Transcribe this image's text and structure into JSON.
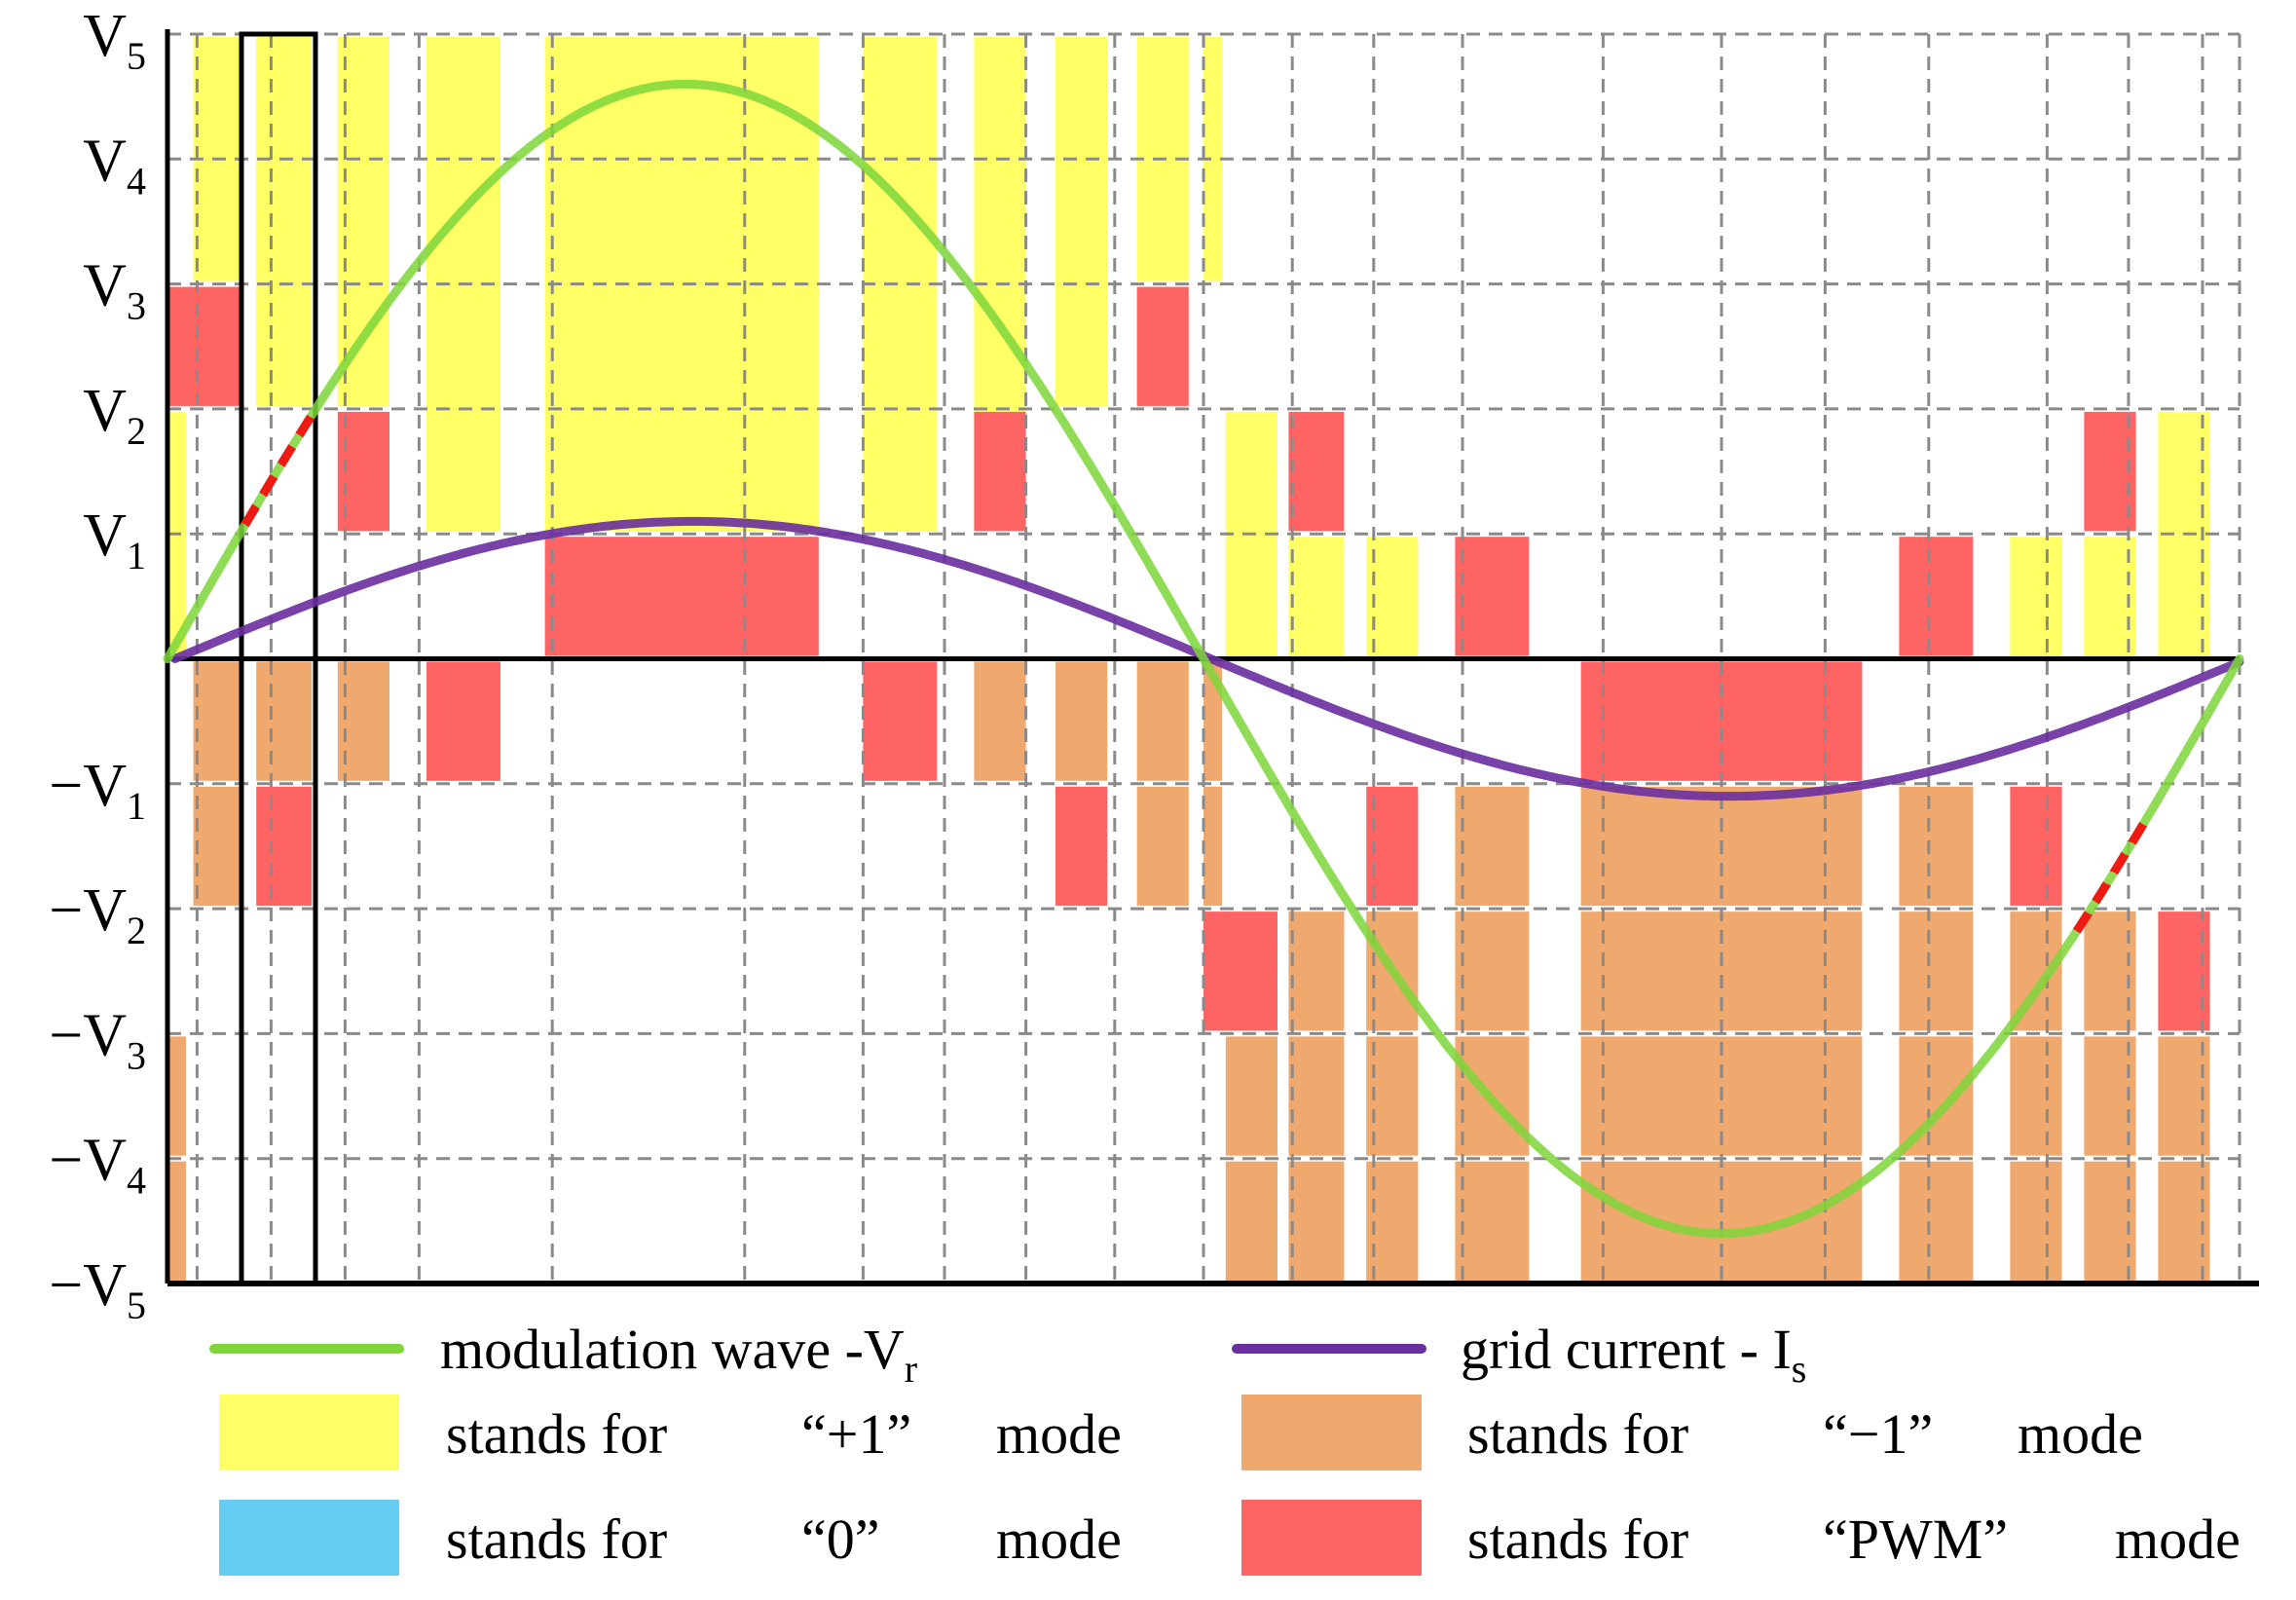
{
  "chart_data": {
    "type": "line",
    "title": "",
    "xlabel": "",
    "ylabel": "",
    "xlim": [
      0,
      28
    ],
    "ylim": [
      -5,
      5
    ],
    "grid": true,
    "yticks": [
      {
        "value": 5,
        "neg": false,
        "main": "V",
        "sub": "5"
      },
      {
        "value": 4,
        "neg": false,
        "main": "V",
        "sub": "4"
      },
      {
        "value": 3,
        "neg": false,
        "main": "V",
        "sub": "3"
      },
      {
        "value": 2,
        "neg": false,
        "main": "V",
        "sub": "2"
      },
      {
        "value": 1,
        "neg": false,
        "main": "V",
        "sub": "1"
      },
      {
        "value": -1,
        "neg": true,
        "main": "V",
        "sub": "1"
      },
      {
        "value": -2,
        "neg": true,
        "main": "V",
        "sub": "2"
      },
      {
        "value": -3,
        "neg": true,
        "main": "V",
        "sub": "3"
      },
      {
        "value": -4,
        "neg": true,
        "main": "V",
        "sub": "4"
      },
      {
        "value": -5,
        "neg": true,
        "main": "V",
        "sub": "5"
      }
    ],
    "xgrid": [
      0.4,
      1.4,
      2.4,
      3.4,
      5.2,
      7.8,
      9.4,
      10.5,
      11.6,
      12.8,
      14.0,
      15.2,
      16.3,
      17.5,
      19.4,
      21.0,
      22.4,
      23.8,
      25.4,
      26.5,
      27.5
    ],
    "series": [
      {
        "name": "modulation wave -Vr",
        "color": "#7ed63a",
        "amplitude": 4.6,
        "period": 28,
        "start": 0
      },
      {
        "name": "grid current - Is",
        "color": "#6a2ea0",
        "amplitude": 1.1,
        "period": 28,
        "start": 0.1
      }
    ],
    "pwm_segments": [
      {
        "x0": 1.05,
        "x1": 2.0
      },
      {
        "x0": 25.8,
        "x1": 26.75
      }
    ],
    "highlight_box": {
      "x0": 1.0,
      "x1": 2.0,
      "y0": -5,
      "y1": 5
    },
    "regions": [
      {
        "mode": "+1",
        "x0": 0.35,
        "x1": 1.0,
        "y0": 3,
        "y1": 5
      },
      {
        "mode": "+1",
        "x0": 1.2,
        "x1": 1.95,
        "y0": 2,
        "y1": 5
      },
      {
        "mode": "+1",
        "x0": 2.3,
        "x1": 3.0,
        "y0": 2,
        "y1": 5
      },
      {
        "mode": "+1",
        "x0": 3.5,
        "x1": 4.5,
        "y0": 1,
        "y1": 5
      },
      {
        "mode": "+1",
        "x0": 5.1,
        "x1": 8.8,
        "y0": 1,
        "y1": 5
      },
      {
        "mode": "+1",
        "x0": 9.4,
        "x1": 10.4,
        "y0": 1,
        "y1": 5
      },
      {
        "mode": "+1",
        "x0": 10.9,
        "x1": 11.6,
        "y0": 1,
        "y1": 5
      },
      {
        "mode": "+1",
        "x0": 12.0,
        "x1": 12.7,
        "y0": 2,
        "y1": 5
      },
      {
        "mode": "+1",
        "x0": 13.1,
        "x1": 13.8,
        "y0": 3,
        "y1": 5
      },
      {
        "mode": "+1",
        "x0": 14.0,
        "x1": 14.25,
        "y0": 3,
        "y1": 5
      },
      {
        "mode": "+1",
        "x0": 0.0,
        "x1": 0.25,
        "y0": 0,
        "y1": 2
      },
      {
        "mode": "+1",
        "x0": 14.3,
        "x1": 15.0,
        "y0": 0,
        "y1": 2
      },
      {
        "mode": "+1",
        "x0": 15.15,
        "x1": 15.9,
        "y0": 0,
        "y1": 1
      },
      {
        "mode": "+1",
        "x0": 16.2,
        "x1": 16.9,
        "y0": 0,
        "y1": 1
      },
      {
        "mode": "+1",
        "x0": 24.9,
        "x1": 25.6,
        "y0": 0,
        "y1": 1
      },
      {
        "mode": "+1",
        "x0": 25.9,
        "x1": 26.6,
        "y0": 0,
        "y1": 1
      },
      {
        "mode": "+1",
        "x0": 26.9,
        "x1": 27.6,
        "y0": 0,
        "y1": 2
      },
      {
        "mode": "PWM",
        "x0": 0.0,
        "x1": 1.0,
        "y0": 2,
        "y1": 3
      },
      {
        "mode": "PWM",
        "x0": 2.3,
        "x1": 3.0,
        "y0": 1,
        "y1": 2
      },
      {
        "mode": "PWM",
        "x0": 5.1,
        "x1": 8.8,
        "y0": 0,
        "y1": 1
      },
      {
        "mode": "PWM",
        "x0": 10.9,
        "x1": 11.6,
        "y0": 1,
        "y1": 2
      },
      {
        "mode": "PWM",
        "x0": 13.1,
        "x1": 13.8,
        "y0": 2,
        "y1": 3
      },
      {
        "mode": "PWM",
        "x0": 15.15,
        "x1": 15.9,
        "y0": 1,
        "y1": 2
      },
      {
        "mode": "PWM",
        "x0": 17.4,
        "x1": 18.4,
        "y0": 0,
        "y1": 1
      },
      {
        "mode": "PWM",
        "x0": 23.4,
        "x1": 24.4,
        "y0": 0,
        "y1": 1
      },
      {
        "mode": "PWM",
        "x0": 25.9,
        "x1": 26.6,
        "y0": 1,
        "y1": 2
      },
      {
        "mode": "-1",
        "x0": 0.35,
        "x1": 1.0,
        "y0": -1,
        "y1": 0
      },
      {
        "mode": "-1",
        "x0": 1.2,
        "x1": 1.95,
        "y0": -1,
        "y1": 0
      },
      {
        "mode": "-1",
        "x0": 2.3,
        "x1": 3.0,
        "y0": -1,
        "y1": 0
      },
      {
        "mode": "PWM",
        "x0": 3.5,
        "x1": 4.5,
        "y0": -1,
        "y1": 0
      },
      {
        "mode": "PWM",
        "x0": 9.4,
        "x1": 10.4,
        "y0": -1,
        "y1": 0
      },
      {
        "mode": "-1",
        "x0": 10.9,
        "x1": 11.6,
        "y0": -1,
        "y1": 0
      },
      {
        "mode": "-1",
        "x0": 12.0,
        "x1": 12.7,
        "y0": -1,
        "y1": 0
      },
      {
        "mode": "-1",
        "x0": 13.1,
        "x1": 13.8,
        "y0": -1,
        "y1": 0
      },
      {
        "mode": "-1",
        "x0": 14.0,
        "x1": 14.25,
        "y0": -1,
        "y1": 0
      },
      {
        "mode": "PWM",
        "x0": 19.1,
        "x1": 22.9,
        "y0": -1,
        "y1": 0
      },
      {
        "mode": "-1",
        "x0": 0.35,
        "x1": 1.0,
        "y0": -2,
        "y1": -1
      },
      {
        "mode": "PWM",
        "x0": 1.2,
        "x1": 1.95,
        "y0": -2,
        "y1": -1
      },
      {
        "mode": "PWM",
        "x0": 12.0,
        "x1": 12.7,
        "y0": -2,
        "y1": -1
      },
      {
        "mode": "-1",
        "x0": 13.1,
        "x1": 13.8,
        "y0": -2,
        "y1": -1
      },
      {
        "mode": "-1",
        "x0": 14.0,
        "x1": 14.25,
        "y0": -2,
        "y1": -1
      },
      {
        "mode": "PWM",
        "x0": 16.2,
        "x1": 16.9,
        "y0": -2,
        "y1": -1
      },
      {
        "mode": "-1",
        "x0": 17.4,
        "x1": 18.4,
        "y0": -2,
        "y1": -1
      },
      {
        "mode": "-1",
        "x0": 19.1,
        "x1": 22.9,
        "y0": -2,
        "y1": -1
      },
      {
        "mode": "-1",
        "x0": 23.4,
        "x1": 24.4,
        "y0": -2,
        "y1": -1
      },
      {
        "mode": "PWM",
        "x0": 24.9,
        "x1": 25.6,
        "y0": -2,
        "y1": -1
      },
      {
        "mode": "PWM",
        "x0": 14.0,
        "x1": 15.0,
        "y0": -3,
        "y1": -2
      },
      {
        "mode": "-1",
        "x0": 15.15,
        "x1": 15.9,
        "y0": -3,
        "y1": -2
      },
      {
        "mode": "-1",
        "x0": 16.2,
        "x1": 16.9,
        "y0": -3,
        "y1": -2
      },
      {
        "mode": "-1",
        "x0": 17.4,
        "x1": 18.4,
        "y0": -3,
        "y1": -2
      },
      {
        "mode": "-1",
        "x0": 19.1,
        "x1": 22.9,
        "y0": -3,
        "y1": -2
      },
      {
        "mode": "-1",
        "x0": 23.4,
        "x1": 24.4,
        "y0": -3,
        "y1": -2
      },
      {
        "mode": "-1",
        "x0": 24.9,
        "x1": 25.6,
        "y0": -3,
        "y1": -2
      },
      {
        "mode": "-1",
        "x0": 25.9,
        "x1": 26.6,
        "y0": -3,
        "y1": -2
      },
      {
        "mode": "PWM",
        "x0": 26.9,
        "x1": 27.6,
        "y0": -3,
        "y1": -2
      },
      {
        "mode": "-1",
        "x0": 0.0,
        "x1": 0.25,
        "y0": -4,
        "y1": -3
      },
      {
        "mode": "-1",
        "x0": 14.3,
        "x1": 15.0,
        "y0": -4,
        "y1": -3
      },
      {
        "mode": "-1",
        "x0": 15.15,
        "x1": 15.9,
        "y0": -4,
        "y1": -3
      },
      {
        "mode": "-1",
        "x0": 16.2,
        "x1": 16.9,
        "y0": -4,
        "y1": -3
      },
      {
        "mode": "-1",
        "x0": 17.4,
        "x1": 18.4,
        "y0": -4,
        "y1": -3
      },
      {
        "mode": "-1",
        "x0": 19.1,
        "x1": 22.9,
        "y0": -4,
        "y1": -3
      },
      {
        "mode": "-1",
        "x0": 23.4,
        "x1": 24.4,
        "y0": -4,
        "y1": -3
      },
      {
        "mode": "-1",
        "x0": 24.9,
        "x1": 25.6,
        "y0": -4,
        "y1": -3
      },
      {
        "mode": "-1",
        "x0": 25.9,
        "x1": 26.6,
        "y0": -4,
        "y1": -3
      },
      {
        "mode": "-1",
        "x0": 26.9,
        "x1": 27.6,
        "y0": -4,
        "y1": -3
      },
      {
        "mode": "-1",
        "x0": 0.0,
        "x1": 0.25,
        "y0": -5,
        "y1": -4
      },
      {
        "mode": "-1",
        "x0": 14.3,
        "x1": 15.0,
        "y0": -5,
        "y1": -4
      },
      {
        "mode": "-1",
        "x0": 15.15,
        "x1": 15.9,
        "y0": -5,
        "y1": -4
      },
      {
        "mode": "-1",
        "x0": 16.2,
        "x1": 16.9,
        "y0": -5,
        "y1": -4
      },
      {
        "mode": "-1",
        "x0": 17.4,
        "x1": 18.4,
        "y0": -5,
        "y1": -4
      },
      {
        "mode": "-1",
        "x0": 19.1,
        "x1": 22.9,
        "y0": -5,
        "y1": -4
      },
      {
        "mode": "-1",
        "x0": 23.4,
        "x1": 24.4,
        "y0": -5,
        "y1": -4
      },
      {
        "mode": "-1",
        "x0": 24.9,
        "x1": 25.6,
        "y0": -5,
        "y1": -4
      },
      {
        "mode": "-1",
        "x0": 25.9,
        "x1": 26.6,
        "y0": -5,
        "y1": -4
      },
      {
        "mode": "-1",
        "x0": 26.9,
        "x1": 27.6,
        "y0": -5,
        "y1": -4
      }
    ],
    "mode_colors": {
      "+1": "#ffff66",
      "0": "#66ccf2",
      "-1": "#efa86e",
      "PWM": "#fd6463"
    },
    "pwm_dash_color": "#ee1b14",
    "legend": {
      "line_items": [
        {
          "label": "modulation wave -V",
          "sub": "r",
          "color": "#7ed63a"
        },
        {
          "label": "grid current - I",
          "sub": "s",
          "color": "#6a2ea0"
        }
      ],
      "box_items": [
        {
          "prefix": "stands for",
          "mode_label": "“+1”",
          "suffix": "mode",
          "color": "#ffff66"
        },
        {
          "prefix": "stands for",
          "mode_label": "“−1”",
          "suffix": "mode",
          "color": "#efa86e"
        },
        {
          "prefix": "stands for",
          "mode_label": "“0”",
          "suffix": "mode",
          "color": "#66ccf2"
        },
        {
          "prefix": "stands for",
          "mode_label": "“PWM”",
          "suffix": "mode",
          "color": "#fd6463"
        }
      ]
    }
  }
}
